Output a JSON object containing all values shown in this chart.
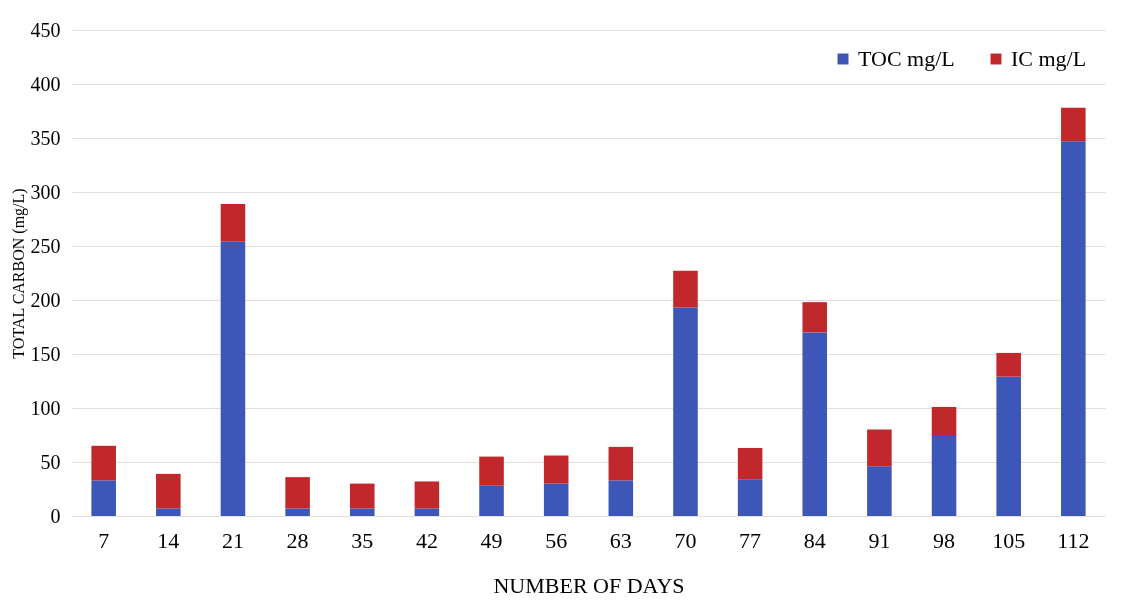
{
  "chart_data": {
    "type": "bar",
    "stacked": true,
    "xlabel": "NUMBER OF DAYS",
    "ylabel": "TOTAL CARBON (mg/L)",
    "categories": [
      "7",
      "14",
      "21",
      "28",
      "35",
      "42",
      "49",
      "56",
      "63",
      "70",
      "77",
      "84",
      "91",
      "98",
      "105",
      "112"
    ],
    "series": [
      {
        "name": "TOC mg/L",
        "color": "#3c57b8",
        "values": [
          33,
          7,
          254,
          7,
          7,
          7,
          28,
          30,
          33,
          193,
          34,
          170,
          46,
          75,
          129,
          347
        ]
      },
      {
        "name": "IC mg/L",
        "color": "#c0282c",
        "values": [
          32,
          32,
          35,
          29,
          23,
          25,
          27,
          26,
          31,
          34,
          29,
          28,
          34,
          26,
          22,
          31
        ]
      }
    ],
    "ylim": [
      0,
      450
    ],
    "yticks": [
      0,
      50,
      100,
      150,
      200,
      250,
      300,
      350,
      400,
      450
    ],
    "grid": "y",
    "legend": "top right"
  }
}
